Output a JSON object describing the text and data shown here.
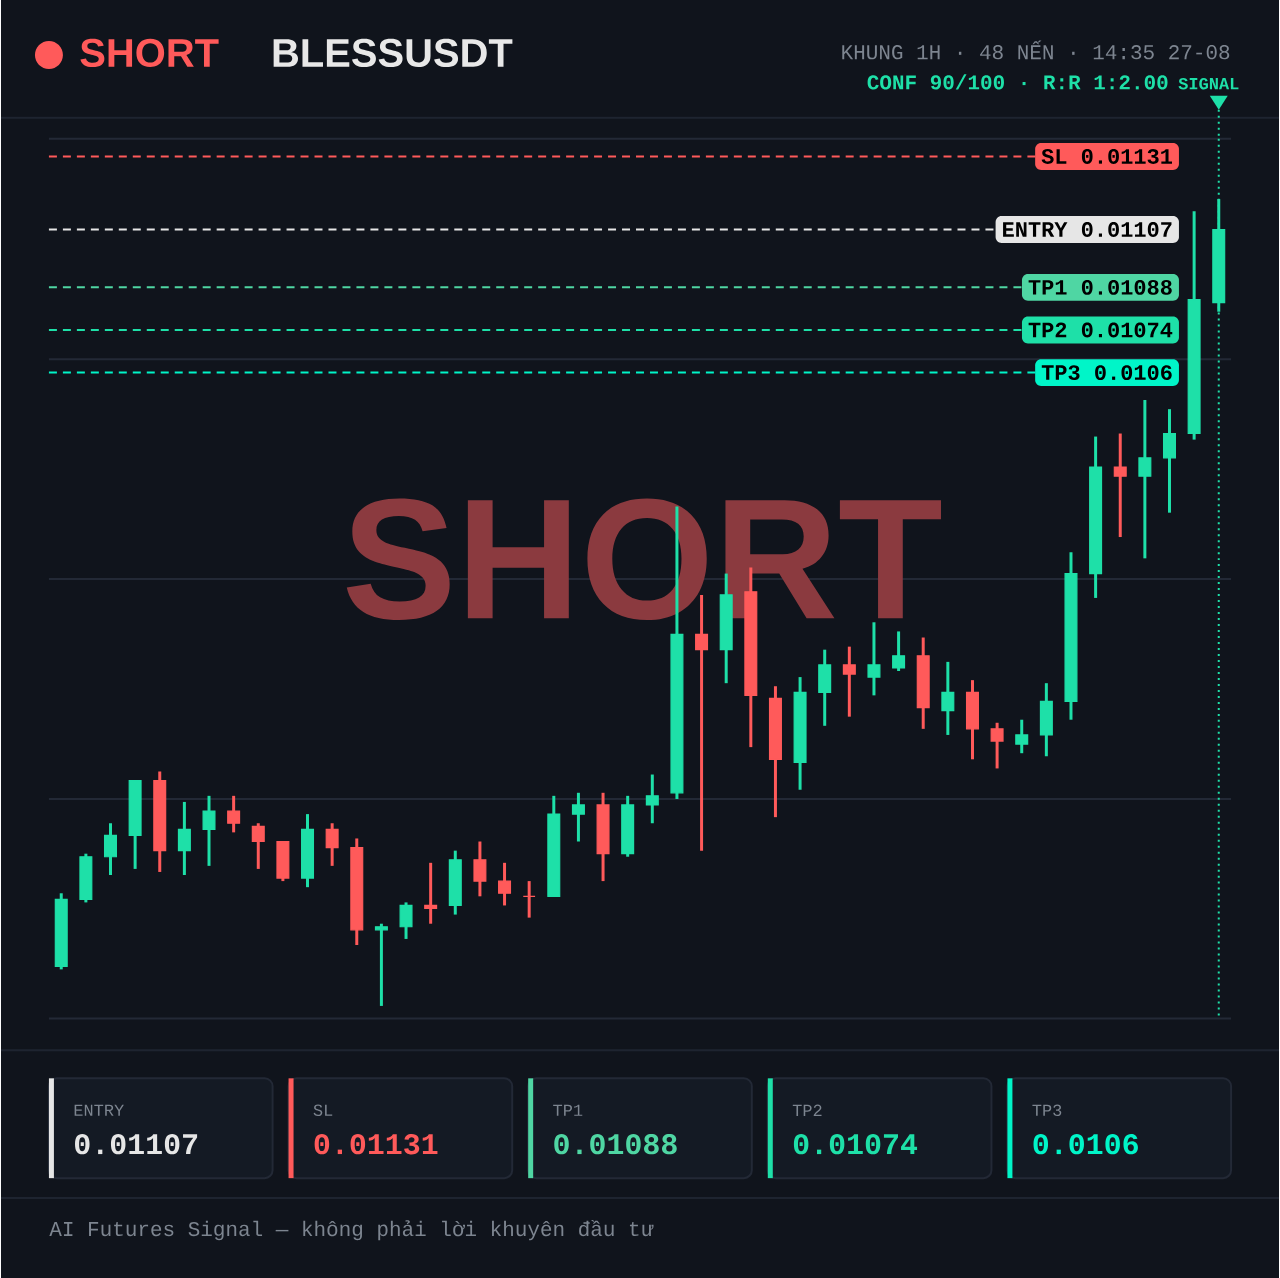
{
  "chart_data": {
    "type": "candlestick",
    "title": "BLESSUSDT",
    "categories": [
      null,
      null,
      null,
      null,
      null,
      null,
      null,
      null,
      null,
      null,
      null,
      null,
      null,
      null,
      null,
      null,
      null,
      null,
      null,
      null,
      null,
      null,
      null,
      null,
      null,
      null,
      null,
      null,
      null,
      null,
      null,
      null,
      null,
      null,
      null,
      null,
      null,
      null,
      null,
      null,
      null,
      null,
      null,
      null,
      null,
      null,
      null,
      null
    ],
    "ohlc": [
      [
        0.00865,
        0.00889,
        0.00864,
        0.00887
      ],
      [
        0.00887,
        0.00902,
        0.00886,
        0.00901
      ],
      [
        0.00901,
        0.00912,
        0.00895,
        0.00908
      ],
      [
        0.00908,
        0.00926,
        0.00897,
        0.00926
      ],
      [
        0.00926,
        0.00929,
        0.00896,
        0.00903
      ],
      [
        0.00903,
        0.00919,
        0.00895,
        0.0091
      ],
      [
        0.0091,
        0.00921,
        0.00898,
        0.00916
      ],
      [
        0.00916,
        0.00921,
        0.00909,
        0.00912
      ],
      [
        0.00911,
        0.00912,
        0.00897,
        0.00906
      ],
      [
        0.00906,
        0.00906,
        0.00893,
        0.00894
      ],
      [
        0.00894,
        0.00915,
        0.00891,
        0.0091
      ],
      [
        0.0091,
        0.00912,
        0.00898,
        0.00904
      ],
      [
        0.00904,
        0.00907,
        0.00872,
        0.00877
      ],
      [
        0.00877,
        0.00879,
        0.00852,
        0.00878
      ],
      [
        0.00878,
        0.00886,
        0.00874,
        0.00885
      ],
      [
        0.00885,
        0.00899,
        0.00879,
        0.00884
      ],
      [
        0.00885,
        0.00903,
        0.00882,
        0.009
      ],
      [
        0.009,
        0.00906,
        0.00888,
        0.00893
      ],
      [
        0.00893,
        0.00899,
        0.00885,
        0.00889
      ],
      [
        0.00888,
        0.00893,
        0.00881,
        0.00888
      ],
      [
        0.00888,
        0.00921,
        0.00888,
        0.00915
      ],
      [
        0.00915,
        0.00922,
        0.00906,
        0.00918
      ],
      [
        0.00918,
        0.00922,
        0.00893,
        0.00902
      ],
      [
        0.00902,
        0.00921,
        0.00901,
        0.00918
      ],
      [
        0.00918,
        0.00928,
        0.00912,
        0.00921
      ],
      [
        0.00922,
        0.01016,
        0.0092,
        0.00974
      ],
      [
        0.00974,
        0.00987,
        0.00903,
        0.00969
      ],
      [
        0.00969,
        0.00994,
        0.00958,
        0.00987
      ],
      [
        0.00988,
        0.00996,
        0.00937,
        0.00954
      ],
      [
        0.00953,
        0.00957,
        0.00914,
        0.00933
      ],
      [
        0.00932,
        0.0096,
        0.00923,
        0.00955
      ],
      [
        0.00955,
        0.00969,
        0.00944,
        0.00964
      ],
      [
        0.00964,
        0.0097,
        0.00947,
        0.00961
      ],
      [
        0.0096,
        0.00978,
        0.00954,
        0.00964
      ],
      [
        0.00963,
        0.00975,
        0.00962,
        0.00967
      ],
      [
        0.00967,
        0.00973,
        0.00943,
        0.0095
      ],
      [
        0.00949,
        0.00965,
        0.00941,
        0.00955
      ],
      [
        0.00955,
        0.00959,
        0.00933,
        0.00943
      ],
      [
        0.00943,
        0.00945,
        0.0093,
        0.00939
      ],
      [
        0.00938,
        0.00946,
        0.00935,
        0.00941
      ],
      [
        0.00941,
        0.00958,
        0.00934,
        0.00952
      ],
      [
        0.00952,
        0.01001,
        0.00946,
        0.00994
      ],
      [
        0.00994,
        0.01039,
        0.00986,
        0.01029
      ],
      [
        0.01029,
        0.0104,
        0.01006,
        0.01026
      ],
      [
        0.01026,
        0.01051,
        0.00999,
        0.01032
      ],
      [
        0.01032,
        0.01048,
        0.01014,
        0.0104
      ],
      [
        0.0104,
        0.01113,
        0.01038,
        0.01084
      ],
      [
        0.01083,
        0.01117,
        0.0108,
        0.01107
      ]
    ],
    "colors": [
      "#1ee0a8",
      "#1ee0a8",
      "#1ee0a8",
      "#1ee0a8",
      "#ff5a5a",
      "#1ee0a8",
      "#1ee0a8",
      "#ff5a5a",
      "#ff5a5a",
      "#ff5a5a",
      "#1ee0a8",
      "#ff5a5a",
      "#ff5a5a",
      "#1ee0a8",
      "#1ee0a8",
      "#ff5a5a",
      "#1ee0a8",
      "#ff5a5a",
      "#ff5a5a",
      "#ff5a5a",
      "#1ee0a8",
      "#1ee0a8",
      "#ff5a5a",
      "#1ee0a8",
      "#1ee0a8",
      "#1ee0a8",
      "#ff5a5a",
      "#1ee0a8",
      "#ff5a5a",
      "#ff5a5a",
      "#1ee0a8",
      "#1ee0a8",
      "#ff5a5a",
      "#1ee0a8",
      "#1ee0a8",
      "#ff5a5a",
      "#1ee0a8",
      "#ff5a5a",
      "#ff5a5a",
      "#1ee0a8",
      "#1ee0a8",
      "#1ee0a8",
      "#1ee0a8",
      "#ff5a5a",
      "#1ee0a8",
      "#1ee0a8",
      "#1ee0a8",
      "#1ee0a8"
    ],
    "ylim": [
      0.008479,
      0.011368
    ],
    "yticks": [
      {
        "value": 0.008479,
        "label": null
      },
      {
        "value": 0.0092,
        "label": null
      },
      {
        "value": 0.009922,
        "label": null
      },
      {
        "value": 0.010644,
        "label": null
      },
      {
        "value": 0.011368,
        "label": null
      }
    ],
    "grid": "y",
    "ref_lines": [
      {
        "axis": "y",
        "value": 0.01131,
        "label": "SL 0.01131",
        "color": "#ff5a5a",
        "line_style": "dashed"
      },
      {
        "axis": "y",
        "value": 0.01107,
        "label": "ENTRY 0.01107",
        "color": "#e6e6e6",
        "line_style": "dashed"
      },
      {
        "axis": "y",
        "value": 0.01088,
        "label": "TP1 0.01088",
        "color": "#4fd6a3",
        "line_style": "dashed"
      },
      {
        "axis": "y",
        "value": 0.01074,
        "label": "TP2 0.01074",
        "color": "#1ee0a8",
        "line_style": "dashed"
      },
      {
        "axis": "y",
        "value": 0.0106,
        "label": "TP3 0.0106",
        "color": "#00f5c8",
        "line_style": "dashed"
      }
    ],
    "annotations": [
      "SHORT",
      "KHUNG 1H · 48 NẾN · 14:35 27-08",
      "CONF 90/100 · R:R 1:2.00",
      "SIGNAL",
      "SHORT",
      "ENTRY",
      "0.01107",
      "SL",
      "0.01131",
      "TP1",
      "0.01088",
      "TP2",
      "0.01074",
      "TP3",
      "0.0106",
      "AI Futures Signal — không phải lời khuyên đầu tư"
    ]
  }
}
